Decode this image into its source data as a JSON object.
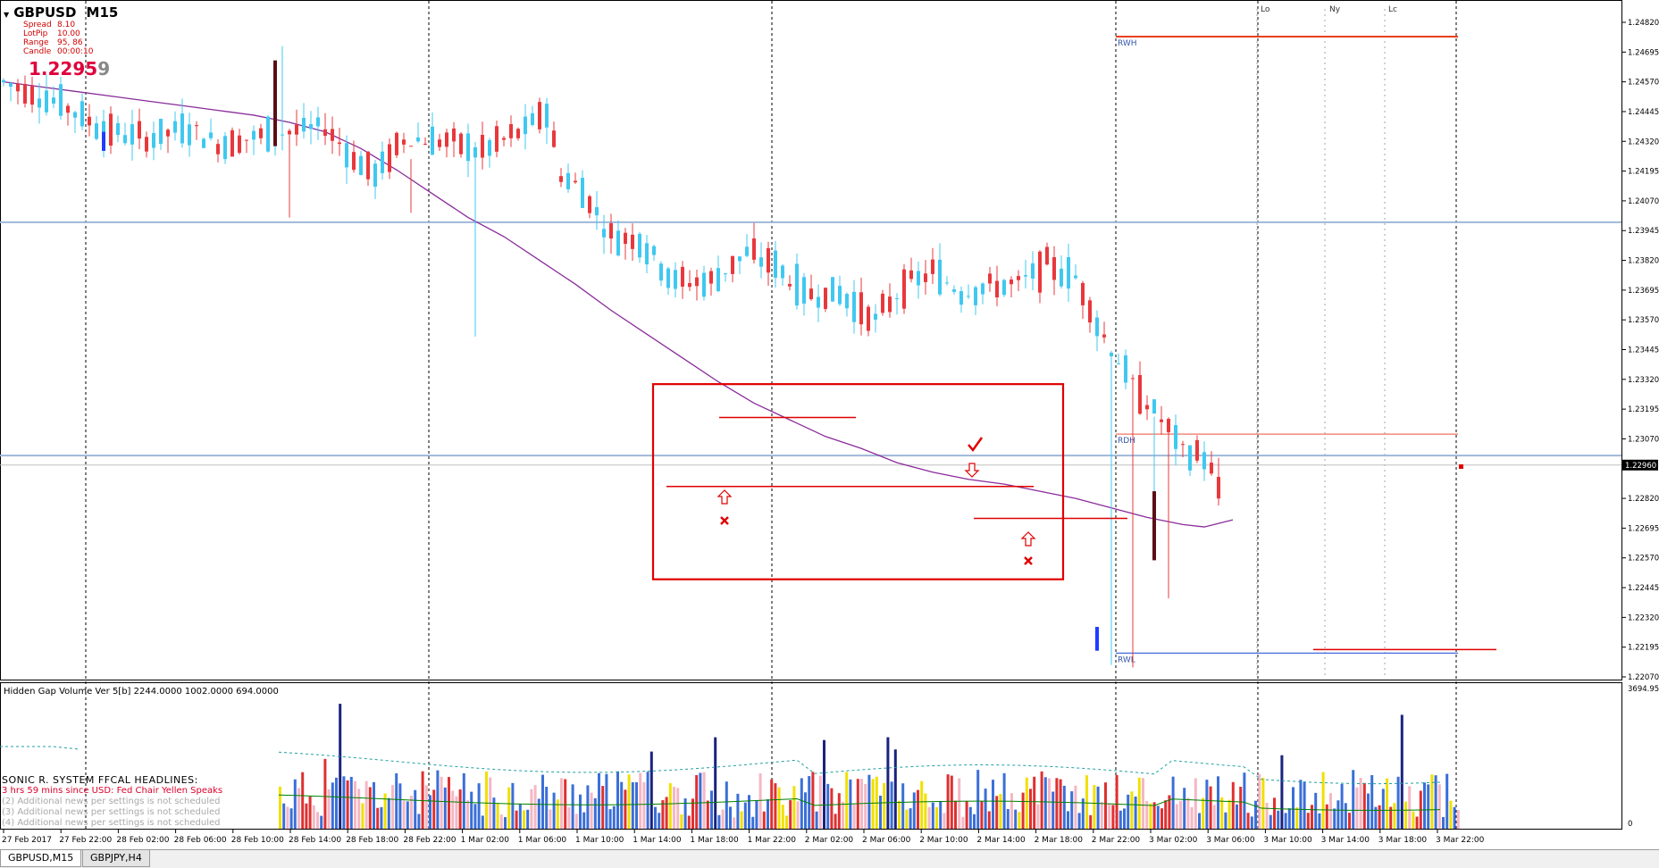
{
  "header": {
    "symbol": "GBPUSD",
    "timeframe": "M15",
    "stats": [
      {
        "label": "Spread",
        "value": "8.10"
      },
      {
        "label": "LotPip",
        "value": "10.00"
      },
      {
        "label": "Range",
        "value": "95, 86"
      },
      {
        "label": "Candle",
        "value": "00:00:10"
      }
    ],
    "price_main": "1.2295",
    "price_small": "9"
  },
  "indicator": {
    "title": "Hidden Gap Volume Ver 5[b] 2244.0000 1002.0000 694.0000",
    "scale_top": "3694.95",
    "scale_bottom": "0"
  },
  "news": {
    "heading": "SONIC R. SYSTEM  FFCAL HEADLINES:",
    "items": [
      "3 hrs 59 mins since USD: Fed Chair Yellen Speaks",
      "(2)  Additional news per settings is not scheduled",
      "(3)  Additional news per settings is not scheduled",
      "(4)  Additional news per settings is not scheduled"
    ]
  },
  "tabs": [
    {
      "label": "GBPUSD,M15",
      "active": true
    },
    {
      "label": "GBPJPY,H4",
      "active": false
    }
  ],
  "chart_data": {
    "type": "candlestick",
    "price_axis": {
      "ylim": [
        1.2207,
        1.2482
      ],
      "ticks": [
        "1.24820",
        "1.24695",
        "1.24570",
        "1.24445",
        "1.24320",
        "1.24195",
        "1.24070",
        "1.23945",
        "1.23820",
        "1.23695",
        "1.23570",
        "1.23445",
        "1.23320",
        "1.23195",
        "1.23070",
        "1.22820",
        "1.22695",
        "1.22570",
        "1.22445",
        "1.22320",
        "1.22195",
        "1.22070"
      ],
      "current_price_label": "1.22960",
      "current_price": 1.2296
    },
    "time_axis": {
      "ticks": [
        "27 Feb 2017",
        "27 Feb 22:00",
        "28 Feb 02:00",
        "28 Feb 06:00",
        "28 Feb 10:00",
        "28 Feb 14:00",
        "28 Feb 18:00",
        "28 Feb 22:00",
        "1 Mar 02:00",
        "1 Mar 06:00",
        "1 Mar 10:00",
        "1 Mar 14:00",
        "1 Mar 18:00",
        "1 Mar 22:00",
        "2 Mar 02:00",
        "2 Mar 06:00",
        "2 Mar 10:00",
        "2 Mar 14:00",
        "2 Mar 18:00",
        "2 Mar 22:00",
        "3 Mar 02:00",
        "3 Mar 06:00",
        "3 Mar 10:00",
        "3 Mar 14:00",
        "3 Mar 18:00",
        "3 Mar 22:00"
      ]
    },
    "session_labels": [
      "Lo",
      "Ny",
      "Lc"
    ],
    "levels": [
      {
        "label": "RWH",
        "price": 1.2476,
        "color": "#e8401c"
      },
      {
        "label": "RDH",
        "price": 1.2309,
        "color": "#f07060"
      },
      {
        "label": "RWL",
        "price": 1.2217,
        "color": "#4169e1"
      }
    ],
    "horizontal_lines": [
      1.2398,
      1.23
    ],
    "box": {
      "from": "1 Mar 12:30",
      "to": "2 Mar 19:45",
      "top": 1.233,
      "bottom": 1.2248
    },
    "moving_average": [
      [
        0,
        1.2457
      ],
      [
        5,
        1.2455
      ],
      [
        10,
        1.2453
      ],
      [
        15,
        1.2451
      ],
      [
        20,
        1.2449
      ],
      [
        25,
        1.2447
      ],
      [
        30,
        1.2445
      ],
      [
        35,
        1.2443
      ],
      [
        40,
        1.244
      ],
      [
        45,
        1.2436
      ],
      [
        50,
        1.2429
      ],
      [
        55,
        1.242
      ],
      [
        60,
        1.241
      ],
      [
        65,
        1.24
      ],
      [
        70,
        1.2392
      ],
      [
        75,
        1.2382
      ],
      [
        80,
        1.2372
      ],
      [
        85,
        1.2361
      ],
      [
        90,
        1.2351
      ],
      [
        95,
        1.2341
      ],
      [
        100,
        1.2331
      ],
      [
        105,
        1.2322
      ],
      [
        110,
        1.2315
      ],
      [
        115,
        1.2308
      ],
      [
        120,
        1.2303
      ],
      [
        125,
        1.2297
      ],
      [
        130,
        1.2293
      ],
      [
        135,
        1.229
      ],
      [
        140,
        1.2288
      ],
      [
        145,
        1.2285
      ],
      [
        150,
        1.2282
      ],
      [
        155,
        1.2278
      ],
      [
        160,
        1.2274
      ],
      [
        165,
        1.2271
      ],
      [
        168,
        1.227
      ],
      [
        172,
        1.2273
      ]
    ]
  }
}
